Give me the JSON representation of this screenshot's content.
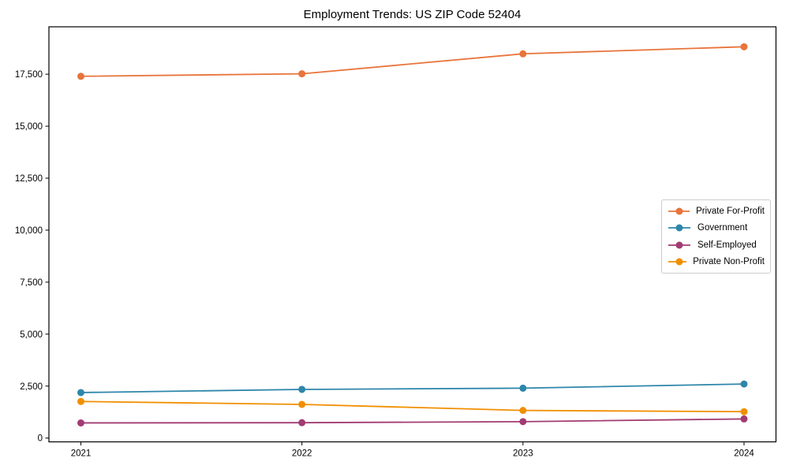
{
  "chart_data": {
    "type": "line",
    "title": "Employment Trends: US ZIP Code 52404",
    "categories": [
      "2021",
      "2022",
      "2023",
      "2024"
    ],
    "series": [
      {
        "name": "Private For-Profit",
        "color": "#E8743B",
        "values": [
          17400,
          17520,
          18480,
          18820
        ]
      },
      {
        "name": "Government",
        "color": "#2E86AB",
        "values": [
          2190,
          2340,
          2400,
          2600
        ]
      },
      {
        "name": "Self-Employed",
        "color": "#A23B72",
        "values": [
          730,
          740,
          790,
          920
        ]
      },
      {
        "name": "Private Non-Profit",
        "color": "#F18F01",
        "values": [
          1760,
          1620,
          1330,
          1270
        ]
      }
    ],
    "xlabel": "",
    "ylabel": "",
    "yticks": [
      0,
      2500,
      5000,
      7500,
      10000,
      12500,
      15000,
      17500
    ],
    "ytick_labels": [
      "0",
      "2,500",
      "5,000",
      "7,500",
      "10,000",
      "12,500",
      "15,000",
      "17,500"
    ],
    "ylim": [
      -182,
      19780
    ],
    "grid": false,
    "legend_position": "center right",
    "axis_color": "#000000",
    "background": "#ffffff"
  }
}
